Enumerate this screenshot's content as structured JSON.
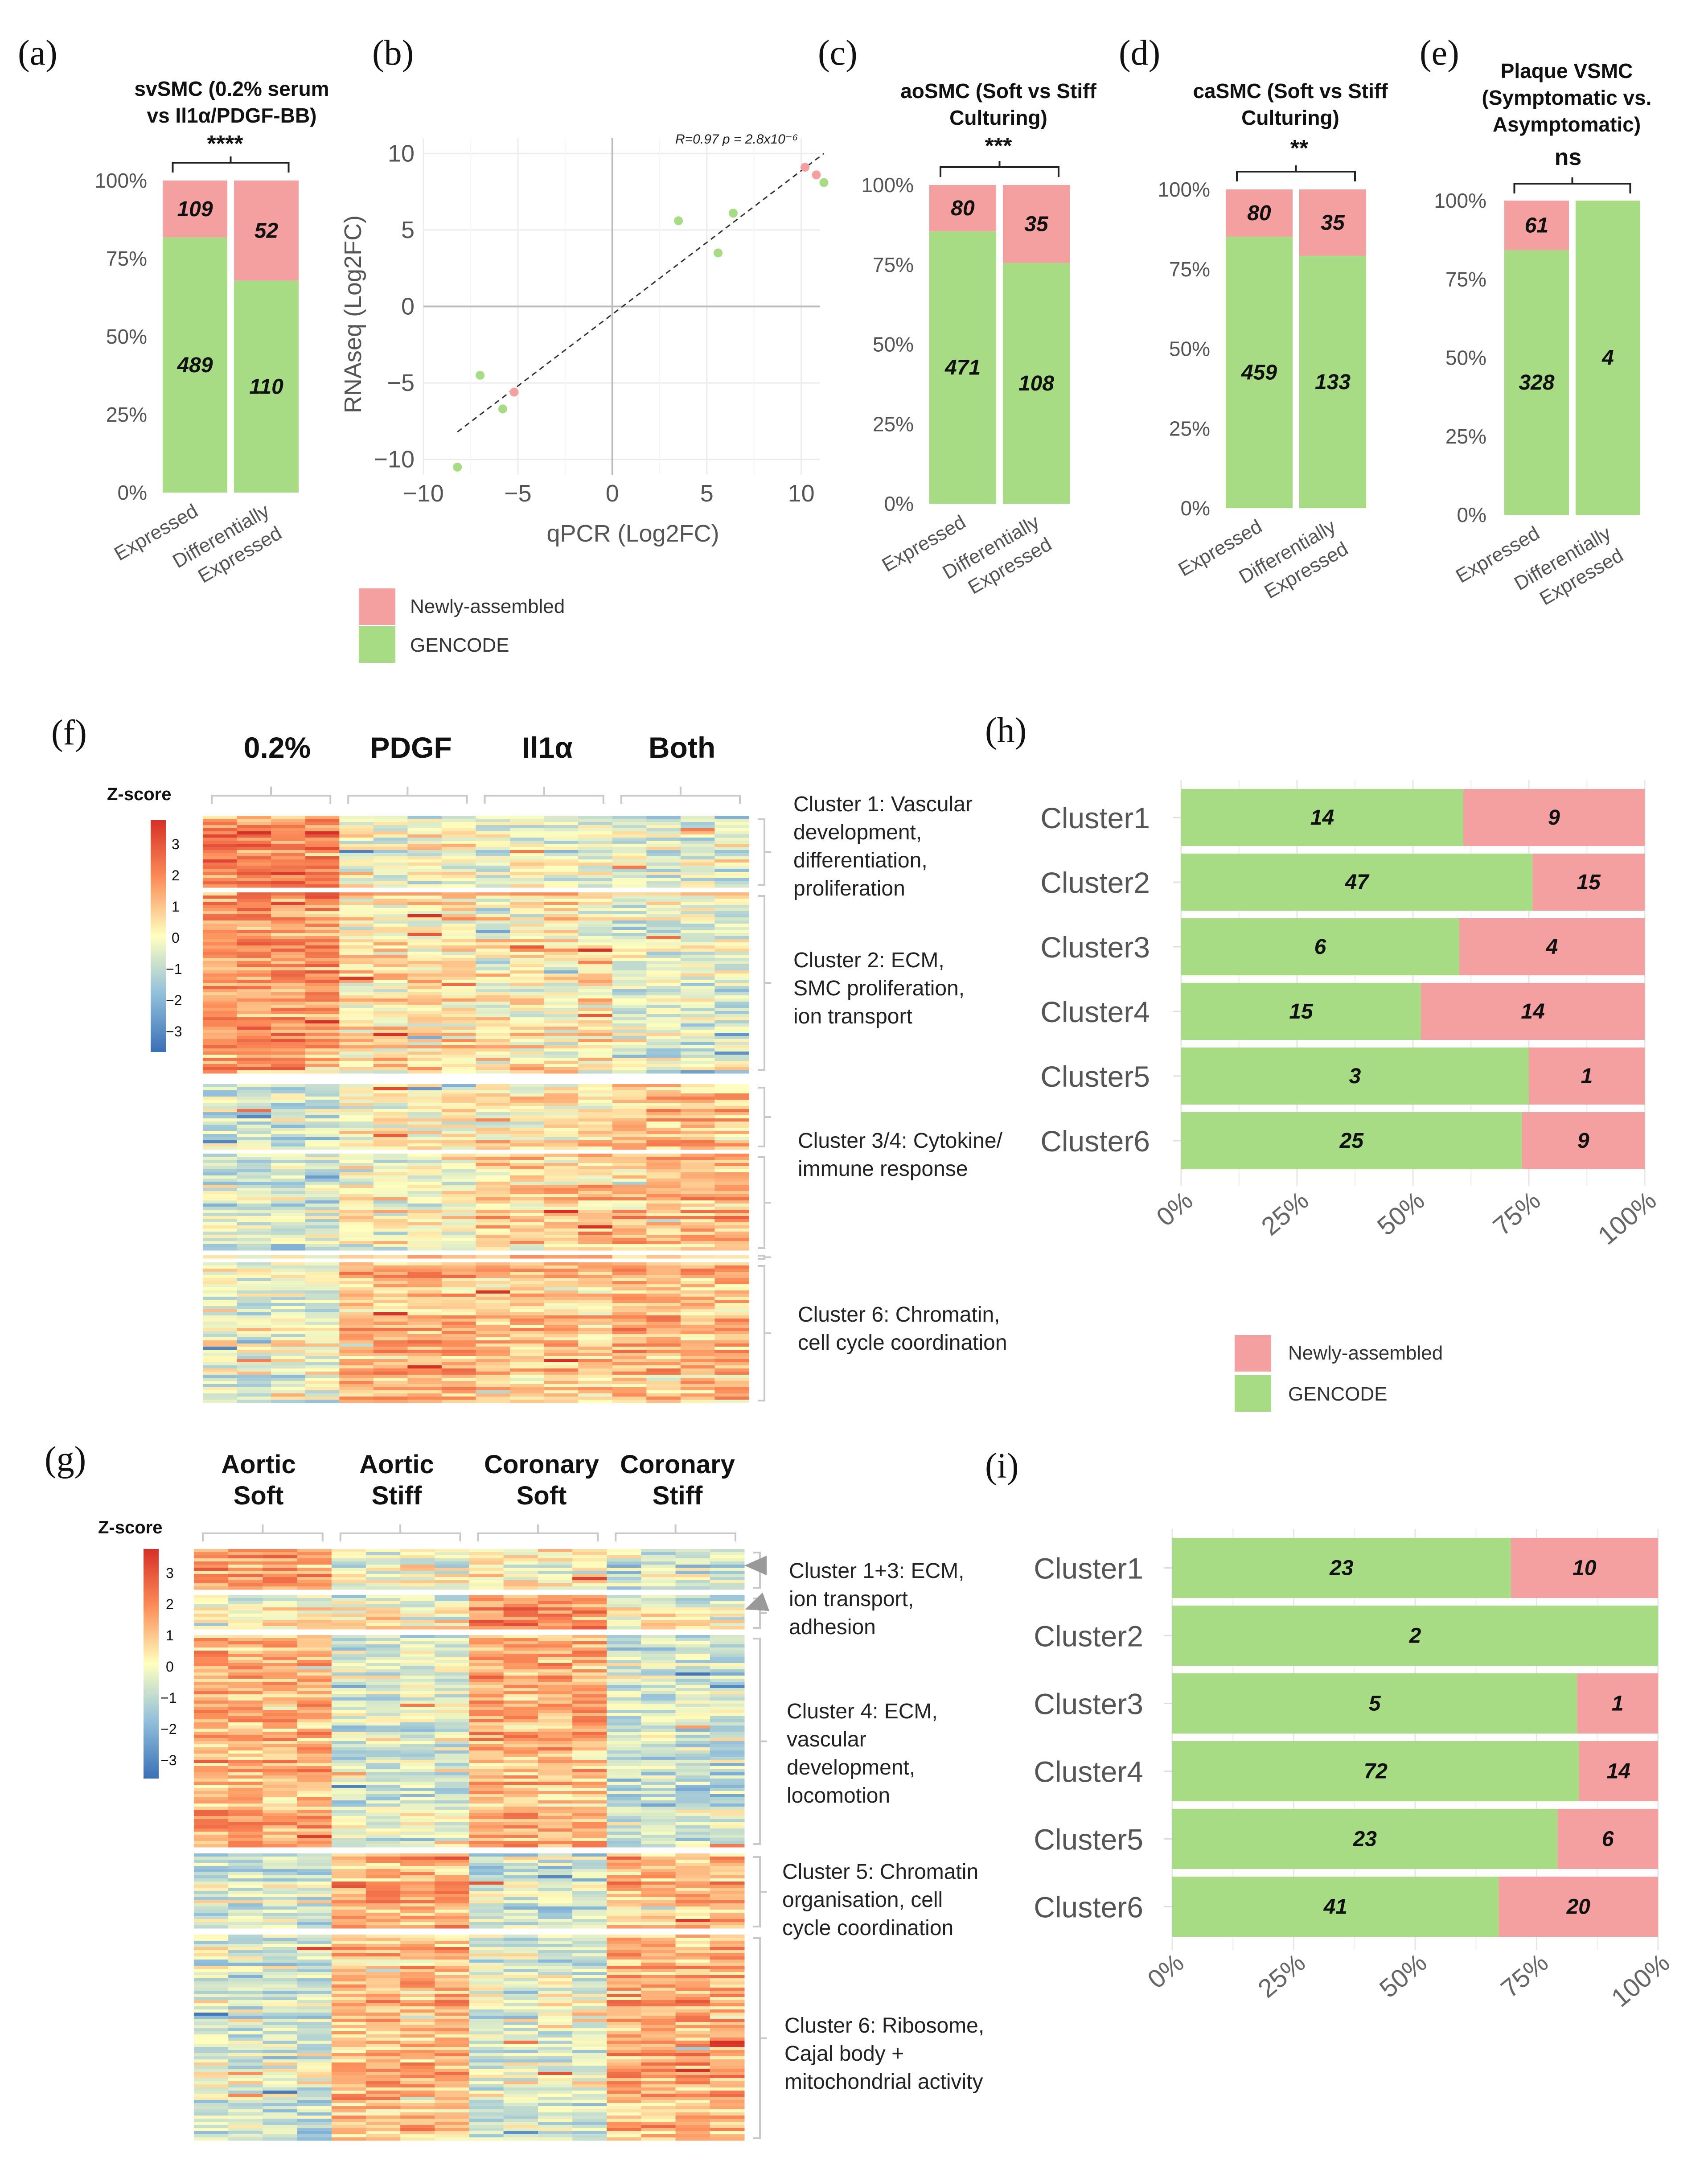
{
  "colors": {
    "newly_assembled": "#F4A0A0",
    "gencode": "#A8DC84",
    "line": "#333333",
    "heat_low": "#3B6FB6",
    "heat_mid": "#FFFFBF",
    "heat_high": "#D73027"
  },
  "legend": {
    "newly_assembled": "Newly-assembled",
    "gencode": "GENCODE"
  },
  "panels": {
    "a": {
      "letter": "(a)",
      "title_lines": [
        "svSMC (0.2% serum",
        "vs Il1α/PDGF-BB)"
      ],
      "significance": "****"
    },
    "b": {
      "letter": "(b)",
      "xlabel": "qPCR (Log2FC)",
      "ylabel": "RNAseq (Log2FC)",
      "stat": "R=0.97 p = 2.8x10⁻⁶"
    },
    "c": {
      "letter": "(c)",
      "title_lines": [
        "aoSMC (Soft vs Stiff",
        "Culturing)"
      ],
      "significance": "***"
    },
    "d": {
      "letter": "(d)",
      "title_lines": [
        "caSMC (Soft vs Stiff",
        "Culturing)"
      ],
      "significance": "**"
    },
    "e": {
      "letter": "(e)",
      "title_lines": [
        "Plaque VSMC",
        "(Symptomatic vs.",
        "Asymptomatic)"
      ],
      "significance": "ns"
    },
    "f": {
      "letter": "(f)",
      "zscore_label": "Z-score",
      "zscore_ticks": [
        "3",
        "2",
        "1",
        "0",
        "−1",
        "−2",
        "−3"
      ],
      "conditions": [
        "0.2%",
        "PDGF",
        "Il1α",
        "Both"
      ],
      "cluster_desc": [
        [
          "Cluster 1: Vascular",
          "development,",
          "differentiation,",
          "proliferation"
        ],
        [
          "Cluster 2: ECM,",
          "SMC proliferation,",
          "ion transport"
        ],
        [
          "Cluster 3/4: Cytokine/",
          "immune response"
        ],
        [
          "Cluster 6: Chromatin,",
          "cell cycle coordination"
        ]
      ]
    },
    "g": {
      "letter": "(g)",
      "zscore_label": "Z-score",
      "zscore_ticks": [
        "3",
        "2",
        "1",
        "0",
        "−1",
        "−2",
        "−3"
      ],
      "conditions": [
        [
          "Aortic",
          "Soft"
        ],
        [
          "Aortic",
          "Stiff"
        ],
        [
          "Coronary",
          "Soft"
        ],
        [
          "Coronary",
          "Stiff"
        ]
      ],
      "cluster_desc": [
        [
          "Cluster 1+3: ECM,",
          "ion transport,",
          "adhesion"
        ],
        [
          "Cluster 4: ECM,",
          "vascular",
          "development,",
          "locomotion"
        ],
        [
          "Cluster 5: Chromatin",
          "organisation, cell",
          "cycle coordination"
        ],
        [
          "Cluster 6: Ribosome,",
          "Cajal body +",
          "mitochondrial activity"
        ]
      ]
    },
    "h": {
      "letter": "(h)"
    },
    "i": {
      "letter": "(i)"
    }
  },
  "chart_data": [
    {
      "id": "a",
      "type": "bar",
      "stacked": true,
      "percent": true,
      "categories": [
        "Expressed",
        "Differentially Expressed"
      ],
      "series": [
        {
          "name": "GENCODE",
          "values": [
            489,
            110
          ]
        },
        {
          "name": "Newly-assembled",
          "values": [
            109,
            52
          ]
        }
      ],
      "yticks": [
        "0%",
        "25%",
        "50%",
        "75%",
        "100%"
      ]
    },
    {
      "id": "b",
      "type": "scatter",
      "xlabel": "qPCR (Log2FC)",
      "ylabel": "RNAseq (Log2FC)",
      "xlim": [
        -10,
        11
      ],
      "ylim": [
        -11,
        11
      ],
      "xticks": [
        -10,
        -5,
        0,
        5,
        10
      ],
      "yticks": [
        -10,
        -5,
        0,
        5,
        10
      ],
      "points": [
        {
          "x": -8.2,
          "y": -10.5,
          "group": "GENCODE"
        },
        {
          "x": -7.0,
          "y": -4.5,
          "group": "GENCODE"
        },
        {
          "x": -5.8,
          "y": -6.7,
          "group": "GENCODE"
        },
        {
          "x": -5.2,
          "y": -5.6,
          "group": "Newly-assembled"
        },
        {
          "x": 3.5,
          "y": 5.6,
          "group": "GENCODE"
        },
        {
          "x": 5.6,
          "y": 3.5,
          "group": "GENCODE"
        },
        {
          "x": 6.4,
          "y": 6.1,
          "group": "GENCODE"
        },
        {
          "x": 10.2,
          "y": 9.1,
          "group": "Newly-assembled"
        },
        {
          "x": 10.8,
          "y": 8.6,
          "group": "Newly-assembled"
        },
        {
          "x": 11.2,
          "y": 8.1,
          "group": "GENCODE"
        }
      ],
      "fit": {
        "x": [
          -8.2,
          11.2
        ],
        "y": [
          -8.2,
          10.0
        ]
      },
      "annotation": "R=0.97 p = 2.8x10⁻⁶"
    },
    {
      "id": "c",
      "type": "bar",
      "stacked": true,
      "percent": true,
      "categories": [
        "Expressed",
        "Differentially Expressed"
      ],
      "series": [
        {
          "name": "GENCODE",
          "values": [
            471,
            108
          ]
        },
        {
          "name": "Newly-assembled",
          "values": [
            80,
            35
          ]
        }
      ],
      "yticks": [
        "0%",
        "25%",
        "50%",
        "75%",
        "100%"
      ]
    },
    {
      "id": "d",
      "type": "bar",
      "stacked": true,
      "percent": true,
      "categories": [
        "Expressed",
        "Differentially Expressed"
      ],
      "series": [
        {
          "name": "GENCODE",
          "values": [
            459,
            133
          ]
        },
        {
          "name": "Newly-assembled",
          "values": [
            80,
            35
          ]
        }
      ],
      "yticks": [
        "0%",
        "25%",
        "50%",
        "75%",
        "100%"
      ]
    },
    {
      "id": "e",
      "type": "bar",
      "stacked": true,
      "percent": true,
      "categories": [
        "Expressed",
        "Differentially Expressed"
      ],
      "series": [
        {
          "name": "GENCODE",
          "values": [
            328,
            4
          ]
        },
        {
          "name": "Newly-assembled",
          "values": [
            61,
            0
          ]
        }
      ],
      "yticks": [
        "0%",
        "25%",
        "50%",
        "75%",
        "100%"
      ]
    },
    {
      "id": "h",
      "type": "bar",
      "stacked": true,
      "horizontal": true,
      "percent": true,
      "categories": [
        "Cluster1",
        "Cluster2",
        "Cluster3",
        "Cluster4",
        "Cluster5",
        "Cluster6"
      ],
      "series": [
        {
          "name": "GENCODE",
          "values": [
            14,
            47,
            6,
            15,
            3,
            25
          ]
        },
        {
          "name": "Newly-assembled",
          "values": [
            9,
            15,
            4,
            14,
            1,
            9
          ]
        }
      ],
      "xticks": [
        "0%",
        "25%",
        "50%",
        "75%",
        "100%"
      ]
    },
    {
      "id": "i",
      "type": "bar",
      "stacked": true,
      "horizontal": true,
      "percent": true,
      "categories": [
        "Cluster1",
        "Cluster2",
        "Cluster3",
        "Cluster4",
        "Cluster5",
        "Cluster6"
      ],
      "series": [
        {
          "name": "GENCODE",
          "values": [
            23,
            2,
            5,
            72,
            23,
            41
          ]
        },
        {
          "name": "Newly-assembled",
          "values": [
            10,
            0,
            1,
            14,
            6,
            20
          ]
        }
      ],
      "xticks": [
        "0%",
        "25%",
        "50%",
        "75%",
        "100%"
      ]
    },
    {
      "id": "f",
      "type": "heatmap",
      "columns": [
        "0.2%",
        "PDGF",
        "Il1α",
        "Both"
      ],
      "clusters": [
        "Cluster 1",
        "Cluster 2",
        "Cluster 3/4",
        "Cluster 6"
      ],
      "value_range": [
        -3,
        3
      ]
    },
    {
      "id": "g",
      "type": "heatmap",
      "columns": [
        "Aortic Soft",
        "Aortic Stiff",
        "Coronary Soft",
        "Coronary Stiff"
      ],
      "clusters": [
        "Cluster 1+3",
        "Cluster 4",
        "Cluster 5",
        "Cluster 6"
      ],
      "value_range": [
        -3,
        3
      ]
    }
  ]
}
